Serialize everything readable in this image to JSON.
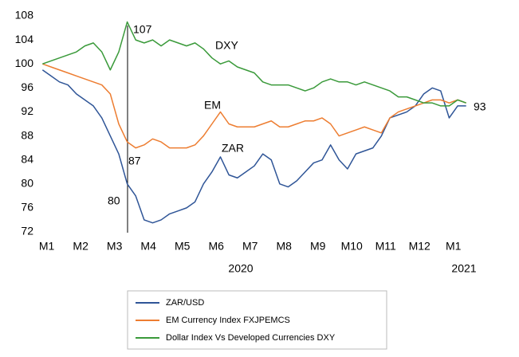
{
  "chart_data": {
    "type": "line",
    "categories": [
      null,
      "M1",
      null,
      null,
      null,
      "M2",
      null,
      null,
      null,
      "M3",
      null,
      null,
      null,
      "M4",
      null,
      null,
      null,
      "M5",
      null,
      null,
      null,
      "M6",
      null,
      null,
      null,
      "M7",
      null,
      null,
      null,
      "M8",
      null,
      null,
      null,
      "M9",
      null,
      null,
      null,
      "M10",
      null,
      null,
      null,
      "M11",
      null,
      null,
      null,
      "M12",
      null,
      null,
      null,
      "M1",
      null
    ],
    "x_group_labels": [
      "2020",
      "2021"
    ],
    "ylim": [
      72,
      108
    ],
    "yticks": [
      72,
      76,
      80,
      84,
      88,
      92,
      96,
      100,
      104,
      108
    ],
    "grid": false,
    "legend": "bottom",
    "annotations": [
      "107",
      "87",
      "80",
      "93",
      "DXY",
      "EM",
      "ZAR"
    ],
    "series": [
      {
        "name": "ZAR/USD",
        "color": "#2f5597",
        "values": [
          99,
          98,
          97,
          96.5,
          95,
          94,
          93,
          91,
          88,
          85,
          80,
          78,
          74,
          73.5,
          74,
          75,
          75.5,
          76,
          77,
          80,
          82,
          84.5,
          81.5,
          81,
          82,
          83,
          85,
          84,
          80,
          79.5,
          80.5,
          82,
          83.5,
          84,
          86.5,
          84,
          82.5,
          85,
          85.5,
          86,
          88,
          91,
          91.5,
          92,
          93,
          95,
          96,
          95.5,
          91,
          93,
          93
        ]
      },
      {
        "name": "EM Currency Index FXJPEMCS",
        "color": "#ed7d31",
        "values": [
          100,
          99.5,
          99,
          98.5,
          98,
          97.5,
          97,
          96.5,
          95,
          90,
          87,
          86,
          86.5,
          87.5,
          87,
          86,
          86,
          86,
          86.5,
          88,
          90,
          92,
          90,
          89.5,
          89.5,
          89.5,
          90,
          90.5,
          89.5,
          89.5,
          90,
          90.5,
          90.5,
          91,
          90,
          88,
          88.5,
          89,
          89.5,
          89,
          88.5,
          91,
          92,
          92.5,
          93,
          93.5,
          94,
          94,
          93.5,
          94,
          93.5
        ]
      },
      {
        "name": "Dollar Index Vs Developed Currencies DXY",
        "color": "#3a9a3a",
        "values": [
          100,
          100.5,
          101,
          101.5,
          102,
          103,
          103.5,
          102,
          99,
          102,
          107,
          104,
          103.5,
          104,
          103,
          104,
          103.5,
          103,
          103.5,
          102.5,
          101,
          100,
          100.5,
          99.5,
          99,
          98.5,
          97,
          96.5,
          96.5,
          96.5,
          96,
          95.5,
          96,
          97,
          97.5,
          97,
          97,
          96.5,
          97,
          96.5,
          96,
          95.5,
          94.5,
          94.5,
          94,
          93.5,
          93.5,
          93,
          93,
          94,
          93.5
        ]
      }
    ]
  }
}
